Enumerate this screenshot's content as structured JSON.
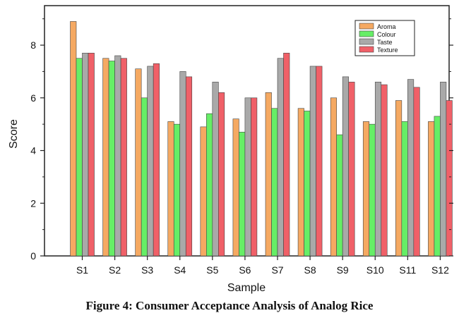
{
  "caption": "Figure 4: Consumer Acceptance Analysis of Analog Rice",
  "chart_data": {
    "type": "bar",
    "xlabel": "Sample",
    "ylabel": "Score",
    "ylim": [
      0,
      9.5
    ],
    "yticks": [
      0,
      2,
      4,
      6,
      8
    ],
    "legend_position": "top-right",
    "categories": [
      "S1",
      "S2",
      "S3",
      "S4",
      "S5",
      "S6",
      "S7",
      "S8",
      "S9",
      "S10",
      "S11",
      "S12"
    ],
    "series": [
      {
        "name": "Aroma",
        "color": "#F5A962",
        "values": [
          8.9,
          7.5,
          7.1,
          5.1,
          4.9,
          5.2,
          6.2,
          5.6,
          6.0,
          5.1,
          5.9,
          5.1
        ]
      },
      {
        "name": "Colour",
        "color": "#66EE66",
        "values": [
          7.5,
          7.4,
          6.0,
          5.0,
          5.4,
          4.7,
          5.6,
          5.5,
          4.6,
          5.0,
          5.1,
          5.3
        ]
      },
      {
        "name": "Taste",
        "color": "#A9A9A9",
        "values": [
          7.7,
          7.6,
          7.2,
          7.0,
          6.6,
          6.0,
          7.5,
          7.2,
          6.8,
          6.6,
          6.7,
          6.6
        ]
      },
      {
        "name": "Texture",
        "color": "#F06068",
        "values": [
          7.7,
          7.5,
          7.3,
          6.8,
          6.2,
          6.0,
          7.7,
          7.2,
          6.6,
          6.5,
          6.4,
          5.9
        ]
      }
    ]
  }
}
